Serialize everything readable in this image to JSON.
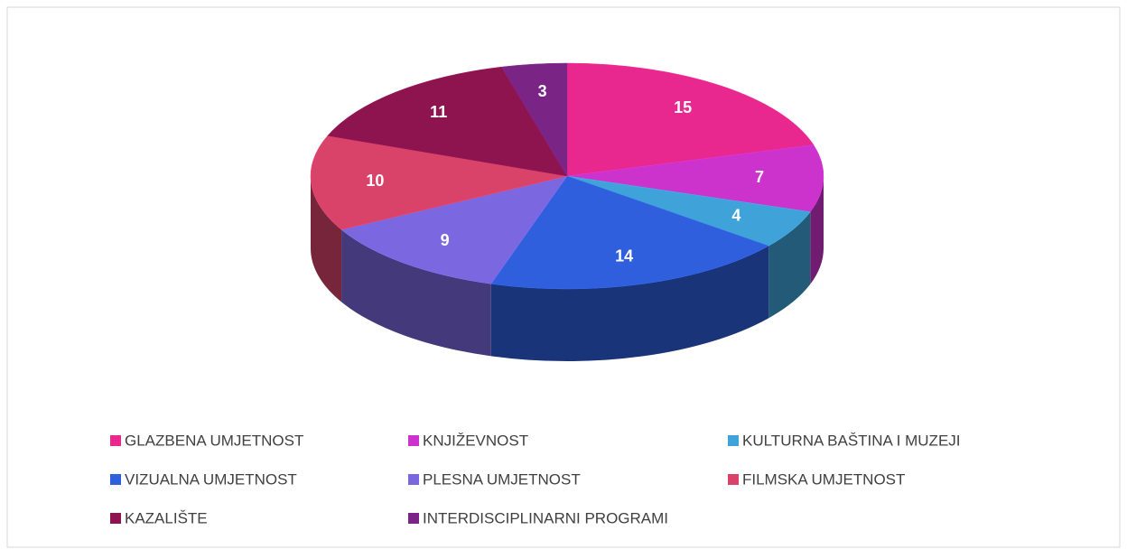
{
  "chart_data": {
    "type": "pie",
    "categories": [
      "GLAZBENA UMJETNOST",
      "KNJIŽEVNOST",
      "KULTURNA BAŠTINA I MUZEJI",
      "VIZUALNA UMJETNOST",
      "PLESNA UMJETNOST",
      "FILMSKA UMJETNOST",
      "KAZALIŠTE",
      "INTERDISCIPLINARNI PROGRAMI"
    ],
    "values": [
      15,
      7,
      4,
      14,
      9,
      10,
      11,
      3
    ],
    "colors": [
      "#e8288e",
      "#cc33cc",
      "#3fa3d9",
      "#2f5fdc",
      "#7b68e0",
      "#d9436a",
      "#8e1450",
      "#7a2585"
    ]
  }
}
